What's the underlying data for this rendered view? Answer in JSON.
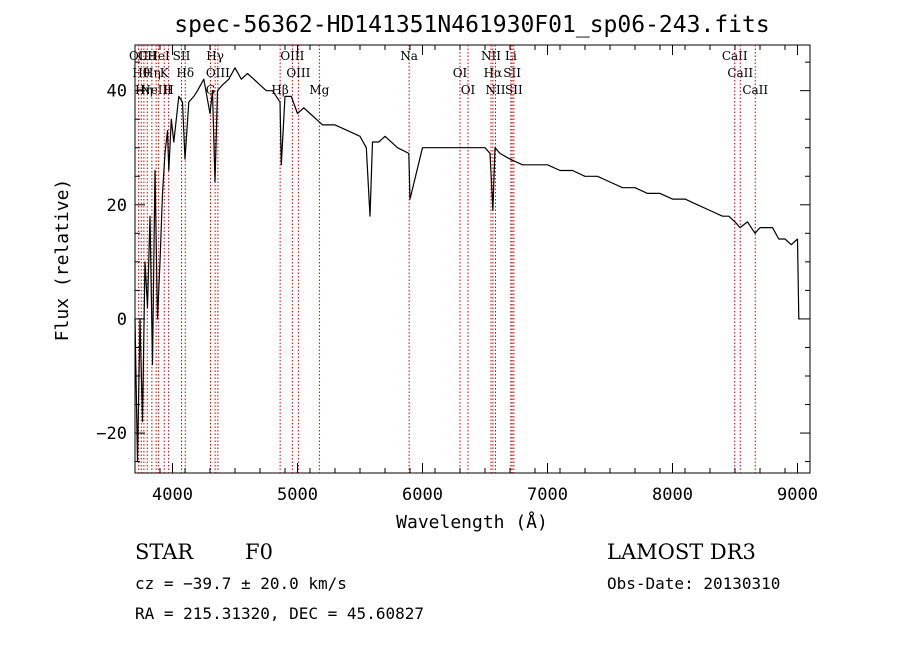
{
  "chart_data": {
    "type": "line",
    "title": "spec-56362-HD141351N461930F01_sp06-243.fits",
    "xlabel": "Wavelength (Å)",
    "ylabel": "Flux (relative)",
    "xlim": [
      3700,
      9100
    ],
    "ylim": [
      -27,
      48
    ],
    "x_ticks": [
      4000,
      5000,
      6000,
      7000,
      8000,
      9000
    ],
    "y_ticks": [
      -20,
      0,
      20,
      40
    ],
    "grid": false,
    "series": [
      {
        "color": "#000000",
        "x": [
          3700,
          3720,
          3740,
          3760,
          3780,
          3800,
          3820,
          3840,
          3860,
          3880,
          3900,
          3920,
          3940,
          3960,
          3970,
          3990,
          4010,
          4050,
          4080,
          4100,
          4130,
          4170,
          4200,
          4250,
          4300,
          4320,
          4340,
          4360,
          4400,
          4450,
          4500,
          4550,
          4600,
          4650,
          4700,
          4750,
          4800,
          4860,
          4870,
          4900,
          4950,
          5000,
          5050,
          5100,
          5150,
          5200,
          5300,
          5400,
          5500,
          5550,
          5580,
          5600,
          5650,
          5700,
          5800,
          5890,
          5900,
          6000,
          6100,
          6200,
          6300,
          6400,
          6500,
          6540,
          6563,
          6580,
          6620,
          6700,
          6800,
          6900,
          7000,
          7100,
          7200,
          7300,
          7400,
          7500,
          7600,
          7700,
          7800,
          7900,
          8000,
          8100,
          8200,
          8300,
          8400,
          8450,
          8500,
          8540,
          8600,
          8660,
          8700,
          8800,
          8850,
          8900,
          8950,
          9000,
          9010,
          9020
        ],
        "y": [
          0,
          -25,
          0,
          -18,
          10,
          2,
          18,
          -8,
          26,
          0,
          10,
          22,
          29,
          33,
          26,
          35,
          31,
          39,
          38,
          28,
          38,
          39,
          40,
          42,
          36,
          40,
          24,
          40,
          41,
          42,
          44,
          42,
          43,
          42,
          41,
          40,
          40,
          38,
          27,
          39,
          39,
          36,
          37,
          36,
          35,
          34,
          34,
          33,
          32,
          30,
          18,
          31,
          31,
          32,
          30,
          29,
          21,
          30,
          30,
          30,
          30,
          30,
          30,
          29,
          19,
          30,
          29,
          28,
          27,
          27,
          27,
          26,
          26,
          25,
          25,
          24,
          23,
          23,
          22,
          22,
          21,
          21,
          20,
          19,
          18,
          18,
          17,
          16,
          17,
          15,
          16,
          16,
          14,
          14,
          13,
          14,
          0,
          0
        ]
      }
    ],
    "line_markers": [
      {
        "wavelength": 3729,
        "label": "OII"
      },
      {
        "wavelength": 3750,
        "label": "Hθ"
      },
      {
        "wavelength": 3771,
        "label": "Hη"
      },
      {
        "wavelength": 3798,
        "label": "CII"
      },
      {
        "wavelength": 3835,
        "label": "Hη"
      },
      {
        "wavelength": 3869,
        "label": "NeIII"
      },
      {
        "wavelength": 3889,
        "label": "HeI"
      },
      {
        "wavelength": 3934,
        "label": "K"
      },
      {
        "wavelength": 3969,
        "label": "H"
      },
      {
        "wavelength": 4072,
        "label": "SII"
      },
      {
        "wavelength": 4102,
        "label": "Hδ"
      },
      {
        "wavelength": 4304,
        "label": "G"
      },
      {
        "wavelength": 4341,
        "label": "Hγ"
      },
      {
        "wavelength": 4363,
        "label": "OIII"
      },
      {
        "wavelength": 4861,
        "label": "Hβ"
      },
      {
        "wavelength": 4959,
        "label": "OIII"
      },
      {
        "wavelength": 5007,
        "label": "OIII"
      },
      {
        "wavelength": 5175,
        "label": "Mg"
      },
      {
        "wavelength": 5893,
        "label": "Na"
      },
      {
        "wavelength": 6300,
        "label": "OI"
      },
      {
        "wavelength": 6364,
        "label": "OI"
      },
      {
        "wavelength": 6548,
        "label": "NII"
      },
      {
        "wavelength": 6563,
        "label": "Hα"
      },
      {
        "wavelength": 6584,
        "label": "NII"
      },
      {
        "wavelength": 6707,
        "label": "Li"
      },
      {
        "wavelength": 6717,
        "label": "SII"
      },
      {
        "wavelength": 6731,
        "label": "SII"
      },
      {
        "wavelength": 8498,
        "label": "CaII"
      },
      {
        "wavelength": 8542,
        "label": "CaII"
      },
      {
        "wavelength": 8662,
        "label": "CaII"
      }
    ],
    "marker_color": "#cc0000"
  },
  "info": {
    "object_class": "STAR",
    "subclass": "F0",
    "survey": "LAMOST DR3",
    "cz": "cz = −39.7 ± 20.0 km/s",
    "obs_date": "Obs-Date: 20130310",
    "coords": "RA = 215.31320, DEC =  45.60827"
  }
}
